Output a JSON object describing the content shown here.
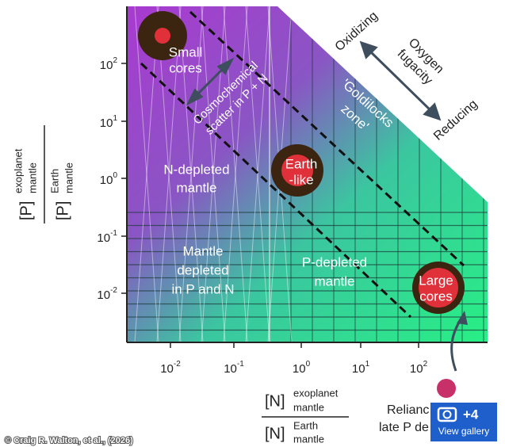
{
  "figure": {
    "y_axis": {
      "numerator": {
        "base": "[P]",
        "sup": "exoplanet",
        "sub": "mantle"
      },
      "denominator": {
        "base": "[P]",
        "sup": "Earth",
        "sub": "mantle"
      },
      "ticks": [
        {
          "base": "10",
          "exp": "2"
        },
        {
          "base": "10",
          "exp": "1"
        },
        {
          "base": "10",
          "exp": "0"
        },
        {
          "base": "10",
          "exp": "-1"
        },
        {
          "base": "10",
          "exp": "-2"
        }
      ]
    },
    "x_axis": {
      "numerator": {
        "base": "[N]",
        "sup": "exoplanet",
        "sub": "mantle"
      },
      "denominator": {
        "base": "[N]",
        "sup": "Earth",
        "sub": "mantle"
      },
      "ticks": [
        {
          "base": "10",
          "exp": "-2"
        },
        {
          "base": "10",
          "exp": "-1"
        },
        {
          "base": "10",
          "exp": "0"
        },
        {
          "base": "10",
          "exp": "1"
        },
        {
          "base": "10",
          "exp": "2"
        }
      ]
    },
    "annotations": {
      "oxidizing": "Oxidizing",
      "oxygen_fugacity": [
        "Oxygen",
        "fugacity"
      ],
      "reducing": "Reducing",
      "goldilocks": [
        "'Goldilocks",
        "zone'"
      ],
      "scatter": [
        "Cosmochemical",
        "scatter in P + N"
      ]
    },
    "regions": {
      "n_depleted": [
        "N-depleted",
        "mantle"
      ],
      "pn_depleted": [
        "Mantle",
        "depleted",
        "in P and N"
      ],
      "p_depleted": [
        "P-depleted",
        "mantle"
      ]
    },
    "planets": {
      "small": [
        "Small",
        "cores"
      ],
      "earth": [
        "Earth",
        "-like"
      ],
      "large": [
        "Large",
        "cores"
      ]
    },
    "reliance": [
      "Relianc",
      "late P de"
    ]
  },
  "credit": "© Craig R. Walton, et al., (2026)",
  "gallery": {
    "count": "+4",
    "label": "View gallery"
  }
}
